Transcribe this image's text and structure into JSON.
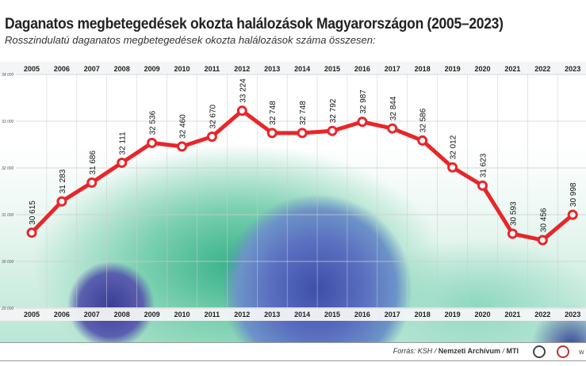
{
  "title": "Daganatos megbetegedések okozta halálozások Magyarországon (2005–2023)",
  "subtitle": "Rosszindulatú daganatos megbetegedések okozta halálozások száma összesen:",
  "source": {
    "prefix": "Forrás: KSH / ",
    "org": "Nemzeti Archívum",
    "sep": " / ",
    "agency": "MTI",
    "trail": "w"
  },
  "colors": {
    "line": "#e8262a",
    "grid": "#cccccc"
  },
  "chart_data": {
    "type": "line",
    "categories": [
      "2005",
      "2006",
      "2007",
      "2008",
      "2009",
      "2010",
      "2011",
      "2012",
      "2013",
      "2014",
      "2015",
      "2016",
      "2017",
      "2018",
      "2019",
      "2020",
      "2021",
      "2022",
      "2023"
    ],
    "values": [
      30615,
      31283,
      31686,
      32111,
      32536,
      32460,
      32670,
      33224,
      32748,
      32748,
      32792,
      32987,
      32844,
      32586,
      32012,
      31623,
      30593,
      30456,
      30998
    ],
    "labels": [
      "30 615",
      "31 283",
      "31 686",
      "32 111",
      "32 536",
      "32 460",
      "32 670",
      "33 224",
      "32 748",
      "32 748",
      "32 792",
      "32 987",
      "32 844",
      "32 586",
      "32 012",
      "31 623",
      "30 593",
      "30 456",
      "30 998"
    ],
    "yticks": [
      29000,
      30000,
      31000,
      32000,
      33000,
      34000
    ],
    "ytick_labels": [
      "29 000",
      "30 000",
      "31 000",
      "32 000",
      "33 000",
      "34 000"
    ],
    "ylim": [
      29000,
      34000
    ],
    "grid": true
  }
}
